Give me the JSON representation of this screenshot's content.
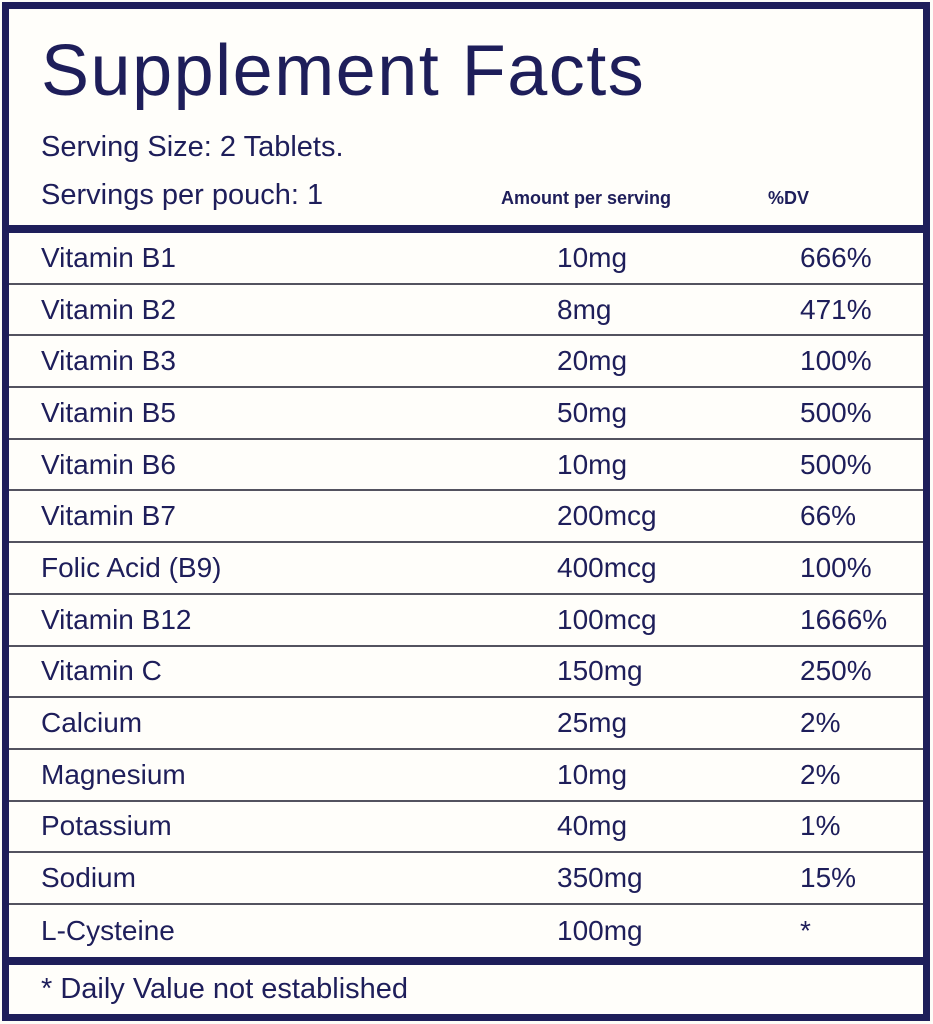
{
  "label": {
    "title": "Supplement Facts",
    "serving_size": "Serving Size: 2 Tablets.",
    "servings_per_pouch": "Servings per pouch: 1",
    "columns": {
      "amount": "Amount per serving",
      "dv": "%DV"
    },
    "rows": [
      {
        "name": "Vitamin B1",
        "amount": "10mg",
        "dv": "666%"
      },
      {
        "name": "Vitamin B2",
        "amount": "8mg",
        "dv": "471%"
      },
      {
        "name": "Vitamin B3",
        "amount": "20mg",
        "dv": "100%"
      },
      {
        "name": "Vitamin B5",
        "amount": "50mg",
        "dv": "500%"
      },
      {
        "name": "Vitamin B6",
        "amount": "10mg",
        "dv": "500%"
      },
      {
        "name": "Vitamin B7",
        "amount": "200mcg",
        "dv": "66%"
      },
      {
        "name": "Folic Acid (B9)",
        "amount": "400mcg",
        "dv": "100%"
      },
      {
        "name": "Vitamin B12",
        "amount": "100mcg",
        "dv": "1666%"
      },
      {
        "name": "Vitamin C",
        "amount": "150mg",
        "dv": "250%"
      },
      {
        "name": "Calcium",
        "amount": "25mg",
        "dv": "2%"
      },
      {
        "name": "Magnesium",
        "amount": "10mg",
        "dv": "2%"
      },
      {
        "name": "Potassium",
        "amount": "40mg",
        "dv": "1%"
      },
      {
        "name": "Sodium",
        "amount": "350mg",
        "dv": "15%"
      },
      {
        "name": "L-Cysteine",
        "amount": "100mg",
        "dv": "*"
      }
    ],
    "footnote": "* Daily Value not established",
    "colors": {
      "navy": "#1e1e5a",
      "row_separator": "#53535f",
      "background": "#fffefa"
    }
  }
}
